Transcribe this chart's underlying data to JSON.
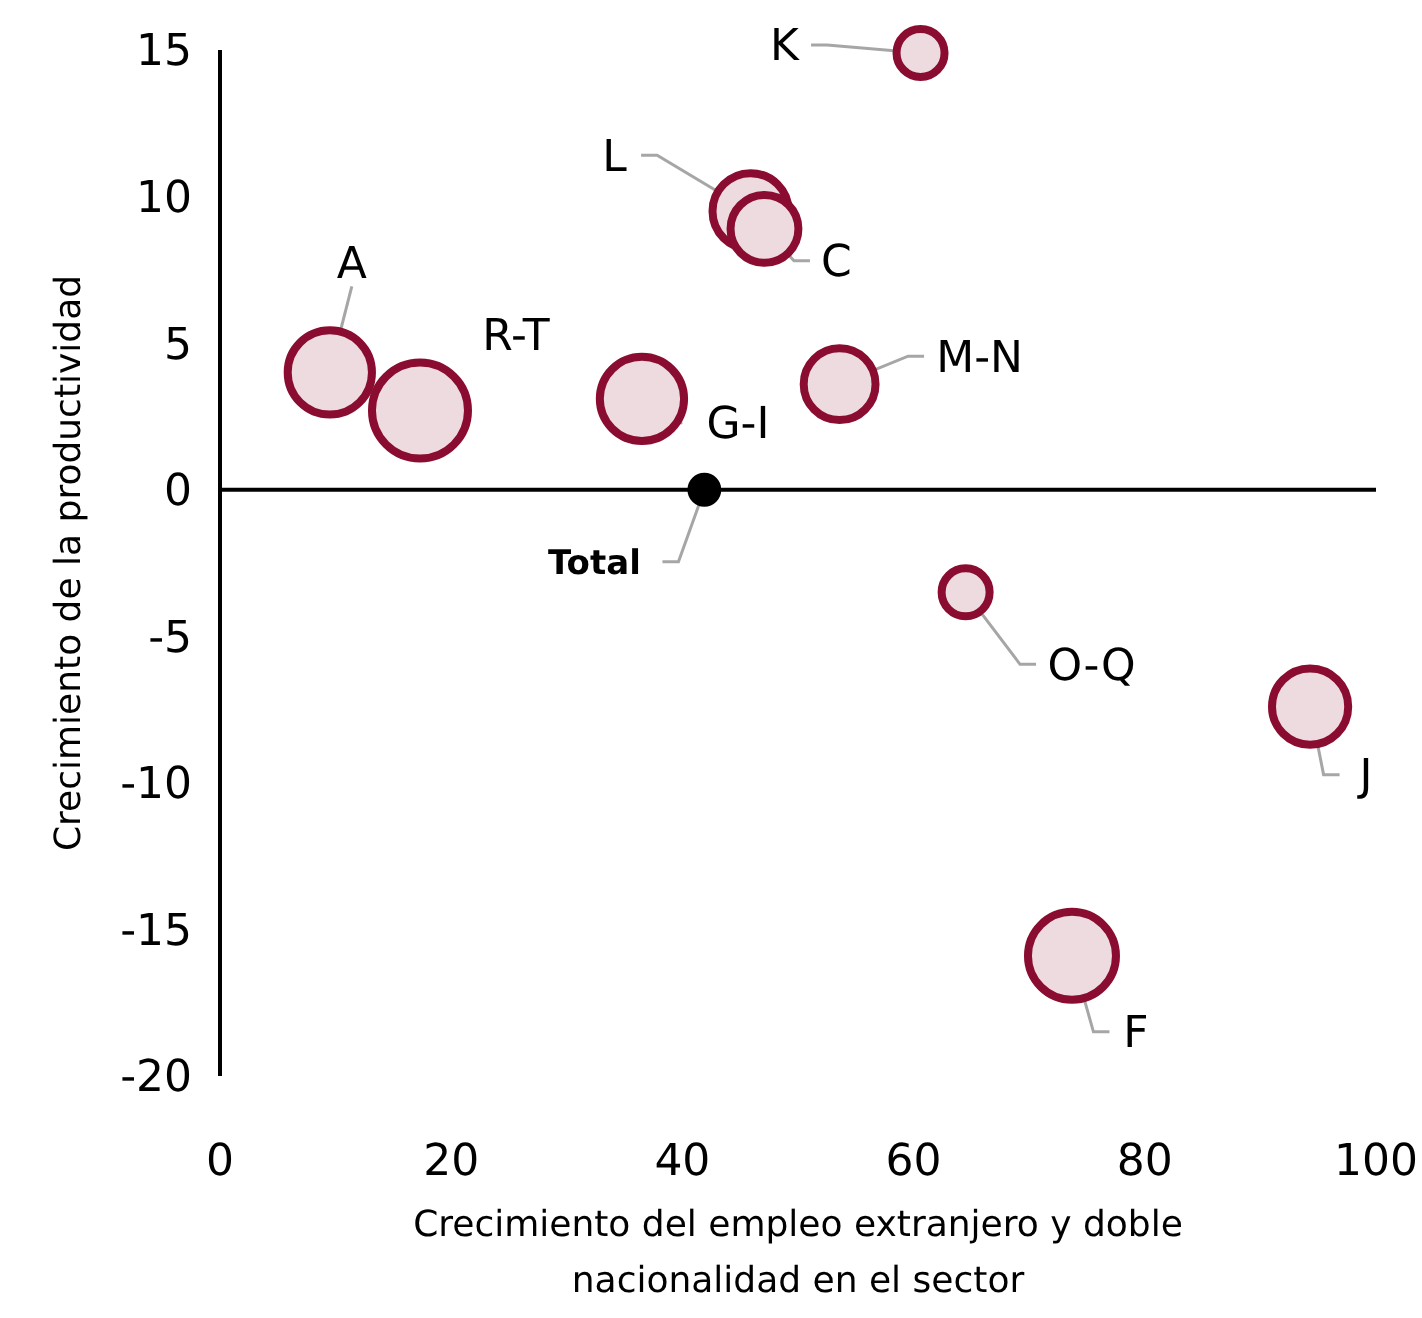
{
  "chart_data": {
    "type": "bubble",
    "xlabel": "Crecimiento del empleo extranjero y doble nacionalidad en el sector",
    "ylabel": "Crecimiento de la productividad",
    "xlim": [
      0,
      100
    ],
    "ylim": [
      -20,
      15
    ],
    "xticks": [
      0,
      20,
      40,
      60,
      80,
      100
    ],
    "yticks": [
      -20,
      -15,
      -10,
      -5,
      0,
      5,
      10,
      15
    ],
    "grid": false,
    "ref_lines": [
      {
        "axis": "y",
        "value": 0,
        "color": "#000000"
      }
    ],
    "series": [
      {
        "color": "#8a0c30",
        "x": [
          60.6,
          45.9,
          47.1,
          9.5,
          17.3,
          36.5,
          53.6,
          64.5,
          94.3,
          73.7
        ],
        "values": [
          14.9,
          9.5,
          8.9,
          4.0,
          2.7,
          3.1,
          3.6,
          -3.5,
          -7.4,
          -15.9
        ],
        "sizes": [
          0.25,
          0.63,
          0.5,
          0.77,
          1,
          0.77,
          0.56,
          0.25,
          0.63,
          0.84
        ]
      },
      {
        "color": "#000000",
        "x": [
          41.9
        ],
        "values": [
          0
        ],
        "sizes": [
          0.11
        ]
      }
    ],
    "annotations": [
      {
        "text": "K",
        "x": 60.6,
        "y": 14.9
      },
      {
        "text": "L",
        "x": 45.9,
        "y": 9.5
      },
      {
        "text": "C",
        "x": 47.1,
        "y": 8.9
      },
      {
        "text": "A",
        "x": 9.5,
        "y": 4.0
      },
      {
        "text": "R-T",
        "x": 17.3,
        "y": 2.7
      },
      {
        "text": "G-I",
        "x": 36.5,
        "y": 3.1
      },
      {
        "text": "M-N",
        "x": 53.6,
        "y": 3.6
      },
      {
        "text": "O-Q",
        "x": 64.5,
        "y": -3.5
      },
      {
        "text": "J",
        "x": 94.3,
        "y": -7.4
      },
      {
        "text": "F",
        "x": 73.7,
        "y": -15.9
      },
      {
        "text": "Total",
        "x": 41.9,
        "y": 0
      }
    ]
  }
}
